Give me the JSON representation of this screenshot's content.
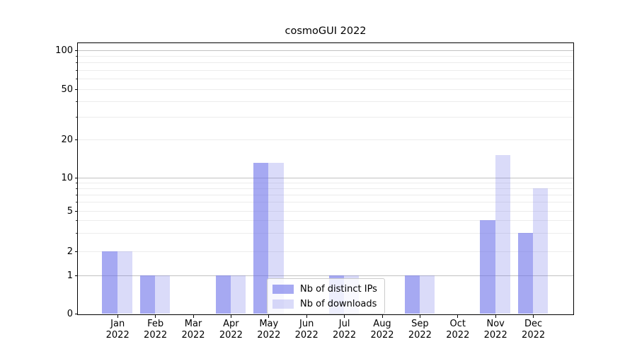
{
  "figure": {
    "title": "cosmoGUI 2022",
    "background": "#ffffff"
  },
  "chart_data": {
    "type": "bar",
    "title": "cosmoGUI 2022",
    "xlabel": "",
    "ylabel": "",
    "categories": [
      {
        "month": "Jan",
        "year": "2022"
      },
      {
        "month": "Feb",
        "year": "2022"
      },
      {
        "month": "Mar",
        "year": "2022"
      },
      {
        "month": "Apr",
        "year": "2022"
      },
      {
        "month": "May",
        "year": "2022"
      },
      {
        "month": "Jun",
        "year": "2022"
      },
      {
        "month": "Jul",
        "year": "2022"
      },
      {
        "month": "Aug",
        "year": "2022"
      },
      {
        "month": "Sep",
        "year": "2022"
      },
      {
        "month": "Oct",
        "year": "2022"
      },
      {
        "month": "Nov",
        "year": "2022"
      },
      {
        "month": "Dec",
        "year": "2022"
      }
    ],
    "series": [
      {
        "name": "Nb of distinct IPs",
        "values": [
          2,
          1,
          0,
          1,
          13,
          0,
          1,
          0,
          1,
          0,
          4,
          3
        ],
        "color": "#6a70e9",
        "alpha": 0.6,
        "hex_on_white": "#a6a9f2"
      },
      {
        "name": "Nb of downloads",
        "values": [
          2,
          1,
          0,
          1,
          13,
          0,
          1,
          0,
          1,
          0,
          15,
          8
        ],
        "color": "#6a70e9",
        "alpha": 0.25,
        "hex_on_white": "#dadbf9"
      }
    ],
    "yscale": "symlog",
    "ylim": [
      0,
      115
    ],
    "y_ticks": [
      0,
      1,
      2,
      5,
      10,
      20,
      50,
      100
    ],
    "y_major_gridlines": [
      1,
      10,
      100
    ],
    "y_minor_gridlines": [
      2,
      3,
      4,
      5,
      6,
      7,
      8,
      9,
      20,
      30,
      40,
      50,
      60,
      70,
      80,
      90
    ],
    "grid": true,
    "legend": {
      "position": "lower center"
    },
    "colors": {
      "grid_major": "#c2c2c2",
      "grid_minor": "#ececec",
      "spine": "#000000",
      "text": "#000000"
    }
  }
}
